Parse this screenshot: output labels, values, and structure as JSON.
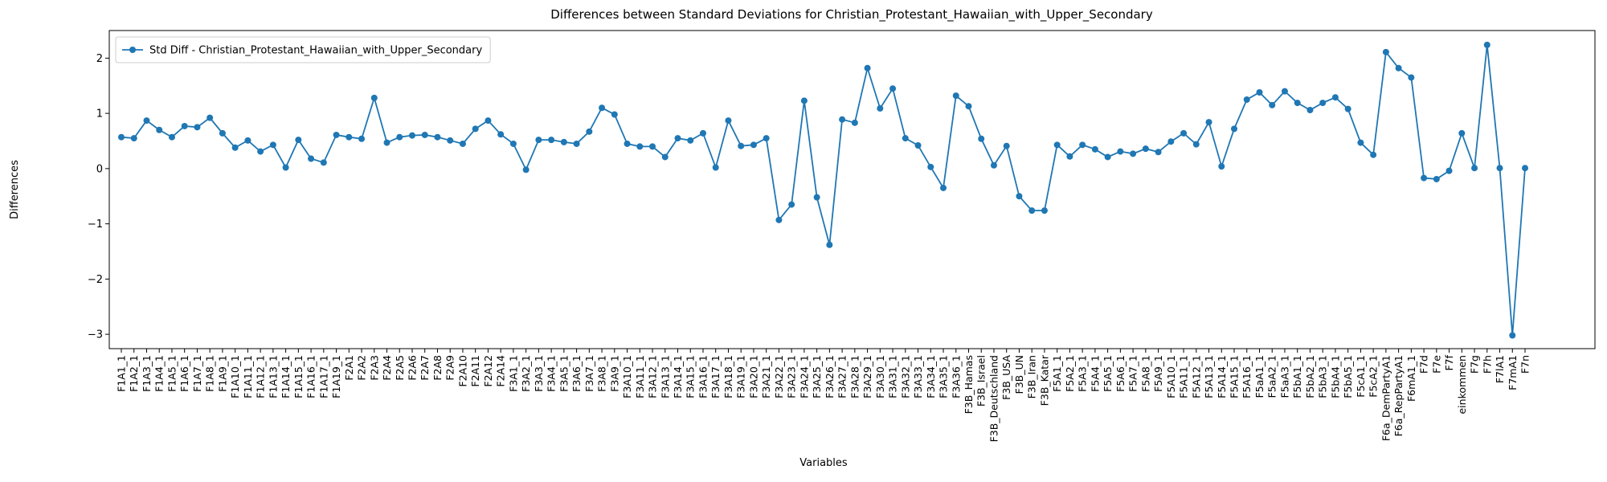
{
  "chart_data": {
    "type": "line",
    "title": "Differences between Standard Deviations for Christian_Protestant_Hawaiian_with_Upper_Secondary",
    "xlabel": "Variables",
    "ylabel": "Differences",
    "categories": [
      "F1A1_1",
      "F1A2_1",
      "F1A3_1",
      "F1A4_1",
      "F1A5_1",
      "F1A6_1",
      "F1A7_1",
      "F1A8_1",
      "F1A9_1",
      "F1A10_1",
      "F1A11_1",
      "F1A12_1",
      "F1A13_1",
      "F1A14_1",
      "F1A15_1",
      "F1A16_1",
      "F1A17_1",
      "F1A19_1",
      "F2A1",
      "F2A2",
      "F2A3",
      "F2A4",
      "F2A5",
      "F2A6",
      "F2A7",
      "F2A8",
      "F2A9",
      "F2A10",
      "F2A11",
      "F2A12",
      "F2A14",
      "F3A1_1",
      "F3A2_1",
      "F3A3_1",
      "F3A4_1",
      "F3A5_1",
      "F3A6_1",
      "F3A7_1",
      "F3A8_1",
      "F3A9_1",
      "F3A10_1",
      "F3A11_1",
      "F3A12_1",
      "F3A13_1",
      "F3A14_1",
      "F3A15_1",
      "F3A16_1",
      "F3A17_1",
      "F3A18_1",
      "F3A19_1",
      "F3A20_1",
      "F3A21_1",
      "F3A22_1",
      "F3A23_1",
      "F3A24_1",
      "F3A25_1",
      "F3A26_1",
      "F3A27_1",
      "F3A28_1",
      "F3A29_1",
      "F3A30_1",
      "F3A31_1",
      "F3A32_1",
      "F3A33_1",
      "F3A34_1",
      "F3A35_1",
      "F3A36_1",
      "F3B_Hamas",
      "F3B_Israel",
      "F3B_Deutschland",
      "F3B_USA",
      "F3B_UN",
      "F3B_Iran",
      "F3B_Katar",
      "F5A1_1",
      "F5A2_1",
      "F5A3_1",
      "F5A4_1",
      "F5A5_1",
      "F5A6_1",
      "F5A7_1",
      "F5A8_1",
      "F5A9_1",
      "F5A10_1",
      "F5A11_1",
      "F5A12_1",
      "F5A13_1",
      "F5A14_1",
      "F5A15_1",
      "F5A16_1",
      "F5aA1_1",
      "F5aA2_1",
      "F5aA3_1",
      "F5bA1_1",
      "F5bA2_1",
      "F5bA3_1",
      "F5bA4_1",
      "F5bA5_1",
      "F5cA1_1",
      "F5cA2_1",
      "F6a_DemPartyA1",
      "F6a_RepPartyA1",
      "F6mA1_1",
      "F7d",
      "F7e",
      "F7f",
      "einkommen",
      "F7g",
      "F7h",
      "F7lA1",
      "F7mA1",
      "F7n"
    ],
    "series": [
      {
        "name": "Std Diff - Christian_Protestant_Hawaiian_with_Upper_Secondary",
        "color": "#1f77b4",
        "values": [
          0.57,
          0.55,
          0.87,
          0.7,
          0.57,
          0.77,
          0.75,
          0.92,
          0.64,
          0.38,
          0.51,
          0.31,
          0.43,
          0.02,
          0.52,
          0.18,
          0.11,
          0.61,
          0.57,
          0.54,
          1.28,
          0.47,
          0.57,
          0.6,
          0.61,
          0.57,
          0.51,
          0.45,
          0.72,
          0.87,
          0.62,
          0.45,
          -0.02,
          0.52,
          0.52,
          0.48,
          0.45,
          0.67,
          1.1,
          0.98,
          0.45,
          0.4,
          0.4,
          0.21,
          0.55,
          0.51,
          0.64,
          0.02,
          0.87,
          0.41,
          0.43,
          0.55,
          -0.93,
          -0.65,
          1.23,
          -0.52,
          -1.38,
          0.89,
          0.83,
          1.82,
          1.09,
          1.45,
          0.55,
          0.42,
          0.03,
          -0.35,
          1.32,
          1.13,
          0.54,
          0.06,
          0.41,
          -0.5,
          -0.76,
          -0.76,
          0.43,
          0.22,
          0.43,
          0.35,
          0.21,
          0.31,
          0.27,
          0.36,
          0.3,
          0.49,
          0.64,
          0.44,
          0.84,
          0.04,
          0.72,
          1.25,
          1.38,
          1.15,
          1.4,
          1.19,
          1.06,
          1.19,
          1.29,
          1.08,
          0.47,
          0.25,
          2.11,
          1.82,
          1.65,
          -0.17,
          -0.19,
          -0.04,
          0.64,
          0.01,
          2.24,
          0.01,
          -3.02,
          0.01
        ]
      }
    ],
    "ylim": [
      -3.26,
      2.5
    ],
    "yticks": [
      {
        "value": -3,
        "label": "−3"
      },
      {
        "value": -2,
        "label": "−2"
      },
      {
        "value": -1,
        "label": "−1"
      },
      0,
      1,
      2
    ],
    "legend": "upper left",
    "grid": false
  }
}
